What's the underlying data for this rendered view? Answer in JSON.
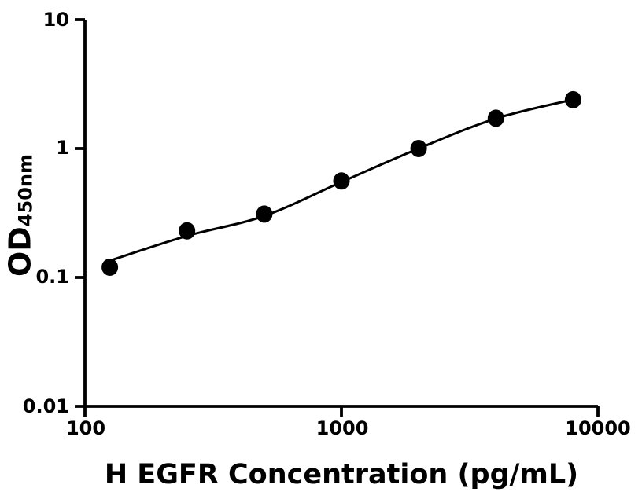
{
  "figure": {
    "background": "#ffffff"
  },
  "chart_data": {
    "type": "scatter",
    "title": "",
    "xlabel": "H EGFR Concentration (pg/mL)",
    "ylabel": "OD",
    "ylabel_subscript": "450nm",
    "x_scale": "log10",
    "y_scale": "log10",
    "xlim": [
      100,
      10000
    ],
    "ylim": [
      0.01,
      10
    ],
    "grid": false,
    "legend": false,
    "x_ticks": [
      {
        "value": 100,
        "label": "100"
      },
      {
        "value": 1000,
        "label": "1000"
      },
      {
        "value": 10000,
        "label": "10000"
      }
    ],
    "y_ticks": [
      {
        "value": 10,
        "label": "10"
      },
      {
        "value": 1,
        "label": "1"
      },
      {
        "value": 0.1,
        "label": "0.1"
      },
      {
        "value": 0.01,
        "label": "0.01"
      }
    ],
    "series": [
      {
        "name": "standard-data-points",
        "type": "scatter",
        "marker": "filled-circle",
        "color": "#000000",
        "x": [
          125,
          250,
          500,
          1000,
          2000,
          4000,
          8000
        ],
        "y": [
          0.12,
          0.23,
          0.31,
          0.56,
          1.0,
          1.72,
          2.39
        ]
      },
      {
        "name": "four-parameter-logistic-fit",
        "type": "line",
        "color": "#000000",
        "x": [
          125,
          250,
          500,
          1000,
          2000,
          4000,
          8000
        ],
        "y": [
          0.135,
          0.21,
          0.3,
          0.55,
          1.0,
          1.71,
          2.4
        ]
      }
    ],
    "colors": {
      "foreground": "#000000",
      "background": "#ffffff"
    }
  }
}
